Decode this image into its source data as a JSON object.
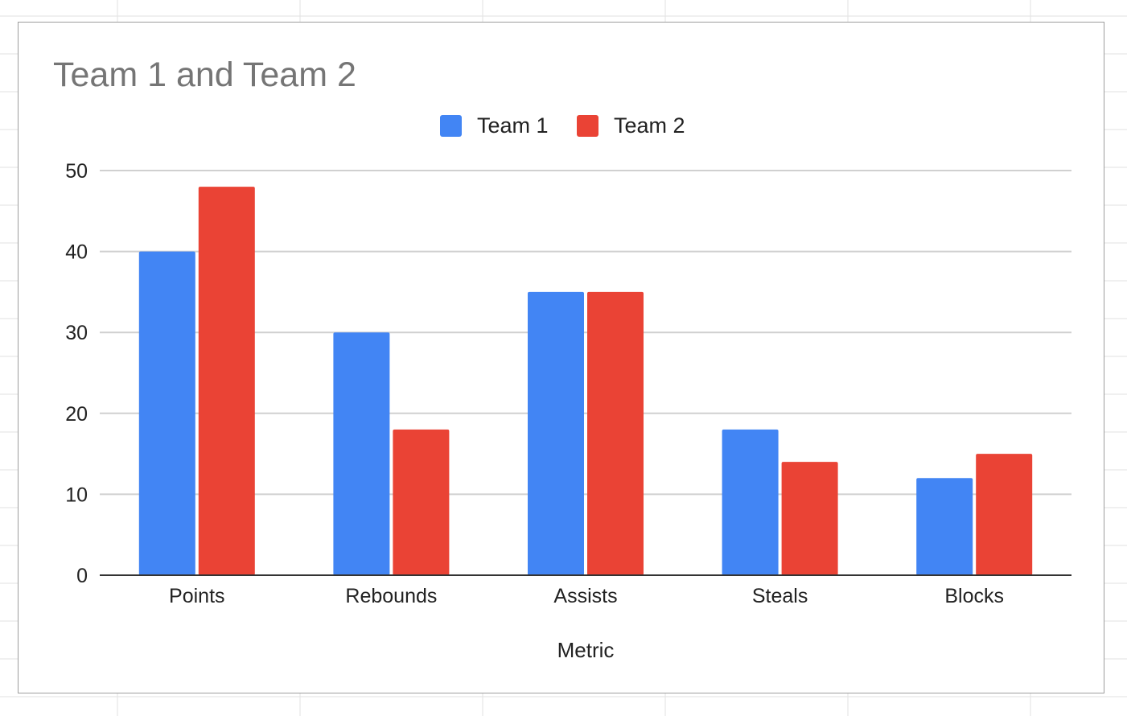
{
  "chart_data": {
    "type": "bar",
    "title": "Team 1 and Team 2",
    "xlabel": "Metric",
    "ylabel": "",
    "categories": [
      "Points",
      "Rebounds",
      "Assists",
      "Steals",
      "Blocks"
    ],
    "series": [
      {
        "name": "Team 1",
        "color": "#4285f4",
        "values": [
          40,
          30,
          35,
          18,
          12
        ]
      },
      {
        "name": "Team 2",
        "color": "#ea4335",
        "values": [
          48,
          18,
          35,
          14,
          15
        ]
      }
    ],
    "ylim": [
      0,
      50
    ],
    "yticks": [
      "0",
      "10",
      "20",
      "30",
      "40",
      "50"
    ],
    "grid": true,
    "legend_position": "top"
  }
}
